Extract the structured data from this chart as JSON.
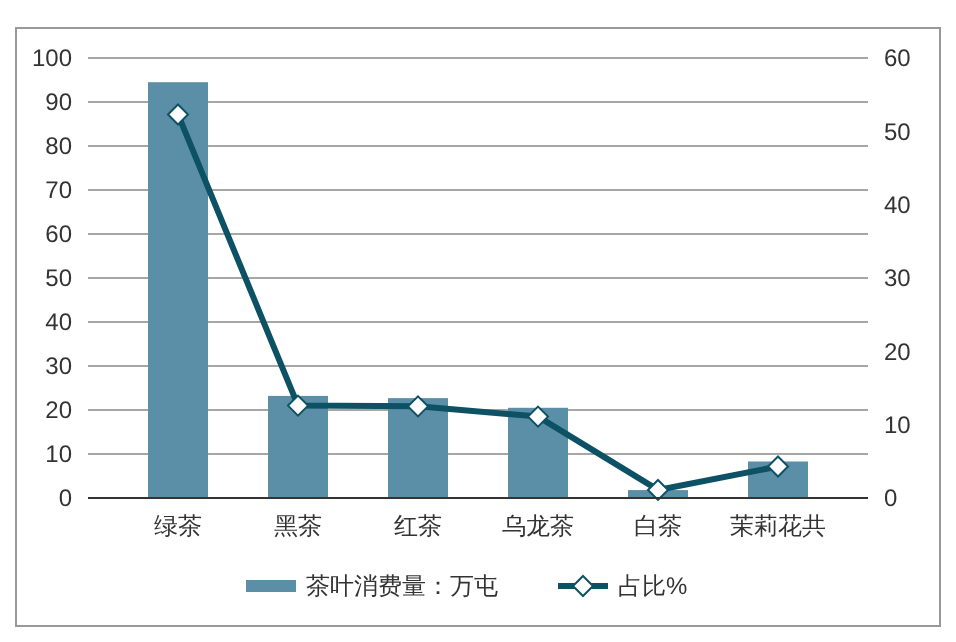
{
  "chart_data": {
    "type": "bar",
    "categories": [
      "绿茶",
      "黑茶",
      "红茶",
      "乌龙茶",
      "白茶",
      "茉莉花共"
    ],
    "series": [
      {
        "name": "茶叶消费量：万屯",
        "color": "#5b8fa8",
        "values": [
          94.5,
          23.2,
          22.7,
          20.5,
          1.8,
          8.3
        ]
      },
      {
        "name": "占比%",
        "type": "line",
        "axis": "y2",
        "color": "#0d5164",
        "marker": "diamond",
        "values": [
          52.3,
          12.6,
          12.5,
          11.1,
          1.1,
          4.3
        ]
      }
    ],
    "ylim": [
      0,
      100
    ],
    "yticks": [
      0,
      10,
      20,
      30,
      40,
      50,
      60,
      70,
      80,
      90,
      100
    ],
    "y2lim": [
      0,
      60
    ],
    "y2ticks": [
      0,
      10,
      20,
      30,
      40,
      50,
      60
    ],
    "grid": "y",
    "legend": "bottom"
  }
}
